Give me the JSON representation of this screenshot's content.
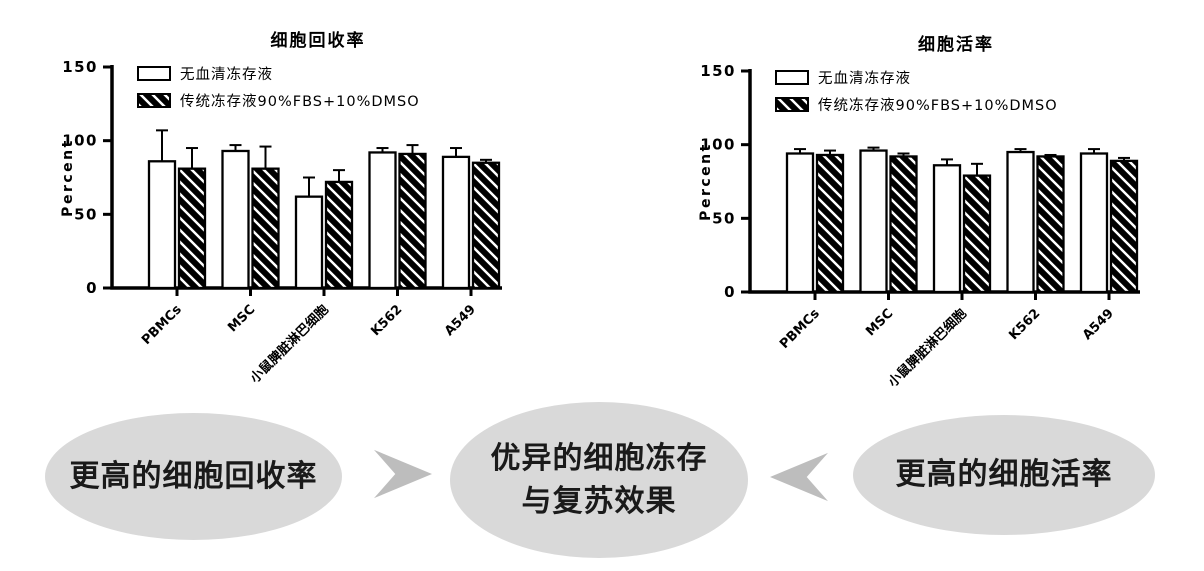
{
  "figure": {
    "background": "#ffffff"
  },
  "chart_data": [
    {
      "type": "bar",
      "title": "细胞回收率",
      "xlabel": "",
      "ylabel": "Percent",
      "ylim": [
        0,
        150
      ],
      "yticks": [
        0,
        50,
        100,
        150
      ],
      "grid": false,
      "legend_position": "top-left",
      "error_bars": "upper",
      "categories": [
        "PBMCs",
        "MSC",
        "小鼠脾脏淋巴细胞",
        "K562",
        "A549"
      ],
      "series": [
        {
          "name": "无血清冻存液",
          "style": "open",
          "values": [
            86,
            93,
            62,
            92,
            89
          ],
          "errors": [
            21,
            4,
            13,
            3,
            6
          ]
        },
        {
          "name": "传统冻存液90%FBS+10%DMSO",
          "style": "hatched",
          "values": [
            81,
            81,
            72,
            91,
            85
          ],
          "errors": [
            14,
            15,
            8,
            6,
            2
          ]
        }
      ],
      "colors": {
        "axis": "#000000",
        "open_bar": "#ffffff",
        "hatch": "#000000"
      }
    },
    {
      "type": "bar",
      "title": "细胞活率",
      "xlabel": "",
      "ylabel": "Percent",
      "ylim": [
        0,
        150
      ],
      "yticks": [
        0,
        50,
        100,
        150
      ],
      "grid": false,
      "legend_position": "top-left",
      "error_bars": "upper",
      "categories": [
        "PBMCs",
        "MSC",
        "小鼠脾脏淋巴细胞",
        "K562",
        "A549"
      ],
      "series": [
        {
          "name": "无血清冻存液",
          "style": "open",
          "values": [
            94,
            96,
            86,
            95,
            94
          ],
          "errors": [
            3,
            2,
            4,
            2,
            3
          ]
        },
        {
          "name": "传统冻存液90%FBS+10%DMSO",
          "style": "hatched",
          "values": [
            93,
            92,
            79,
            92,
            89
          ],
          "errors": [
            3,
            2,
            8,
            1,
            2
          ]
        }
      ],
      "colors": {
        "axis": "#000000",
        "open_bar": "#ffffff",
        "hatch": "#000000"
      }
    }
  ],
  "flow": {
    "node_fill": "#d9d9d9",
    "arrow_fill": "#bdbdbd",
    "text_color": "#1a1a1a",
    "nodes": [
      {
        "text": "更高的细胞回收率"
      },
      {
        "lines": [
          "优异的细胞冻存",
          "与复苏效果"
        ]
      },
      {
        "text": "更高的细胞活率"
      }
    ],
    "arrows": [
      {
        "direction": "right"
      },
      {
        "diredirection": "left",
        "direction": "left"
      }
    ]
  }
}
